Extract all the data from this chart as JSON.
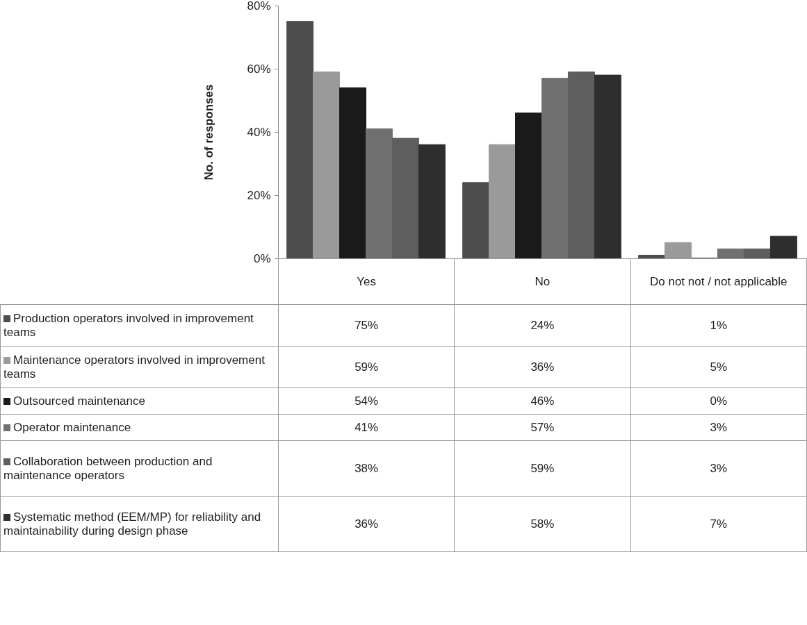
{
  "chart_data": {
    "type": "bar",
    "ylabel": "No. of responses",
    "categories": [
      "Yes",
      "No",
      "Do not not / not applicable"
    ],
    "series": [
      {
        "name": "Production operators involved in improvement teams",
        "color": "#4d4d4d",
        "values": [
          75,
          24,
          1
        ],
        "value_labels": [
          "75%",
          "24%",
          "1%"
        ]
      },
      {
        "name": "Maintenance operators involved in improvement teams",
        "color": "#9a9a9a",
        "values": [
          59,
          36,
          5
        ],
        "value_labels": [
          "59%",
          "36%",
          "5%"
        ]
      },
      {
        "name": "Outsourced maintenance",
        "color": "#1a1a1a",
        "values": [
          54,
          46,
          0
        ],
        "value_labels": [
          "54%",
          "46%",
          "0%"
        ]
      },
      {
        "name": "Operator maintenance",
        "color": "#707070",
        "values": [
          41,
          57,
          3
        ],
        "value_labels": [
          "41%",
          "57%",
          "3%"
        ]
      },
      {
        "name": "Collaboration between production and maintenance operators",
        "color": "#5e5e5e",
        "values": [
          38,
          59,
          3
        ],
        "value_labels": [
          "38%",
          "59%",
          "3%"
        ]
      },
      {
        "name": "Systematic method (EEM/MP) for reliability and maintainability during design phase",
        "color": "#2e2e2e",
        "values": [
          36,
          58,
          7
        ],
        "value_labels": [
          "36%",
          "58%",
          "7%"
        ]
      }
    ],
    "ylim": [
      0,
      80
    ],
    "yticks": [
      {
        "value": 0,
        "label": "0%"
      },
      {
        "value": 20,
        "label": "20%"
      },
      {
        "value": 40,
        "label": "40%"
      },
      {
        "value": 60,
        "label": "60%"
      },
      {
        "value": 80,
        "label": "80%"
      }
    ],
    "legend": "bottom left"
  }
}
